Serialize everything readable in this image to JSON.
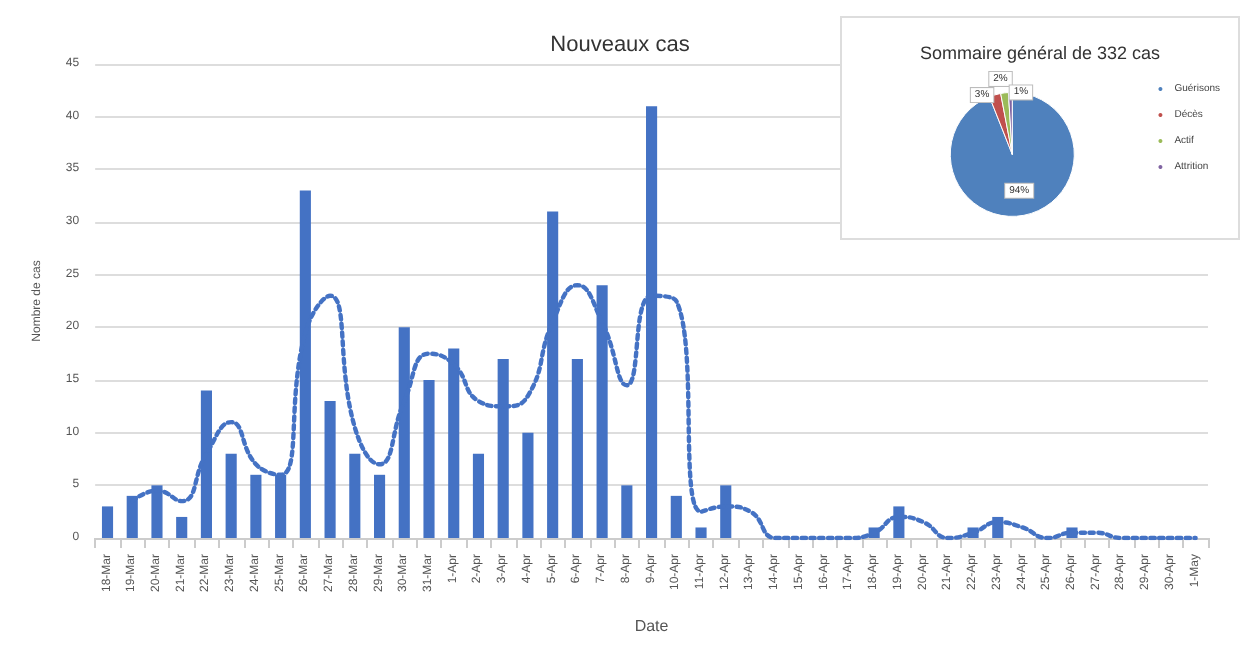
{
  "chart_data": [
    {
      "type": "bar",
      "title": "Nouveaux cas",
      "xlabel": "Date",
      "ylabel": "Nombre de cas",
      "categories": [
        "18-Mar",
        "19-Mar",
        "20-Mar",
        "21-Mar",
        "22-Mar",
        "23-Mar",
        "24-Mar",
        "25-Mar",
        "26-Mar",
        "27-Mar",
        "28-Mar",
        "29-Mar",
        "30-Mar",
        "31-Mar",
        "1-Apr",
        "2-Apr",
        "3-Apr",
        "4-Apr",
        "5-Apr",
        "6-Apr",
        "7-Apr",
        "8-Apr",
        "9-Apr",
        "10-Apr",
        "11-Apr",
        "12-Apr",
        "13-Apr",
        "14-Apr",
        "15-Apr",
        "16-Apr",
        "17-Apr",
        "18-Apr",
        "19-Apr",
        "20-Apr",
        "21-Apr",
        "22-Apr",
        "23-Apr",
        "24-Apr",
        "25-Apr",
        "26-Apr",
        "27-Apr",
        "28-Apr",
        "29-Apr",
        "30-Apr",
        "1-May"
      ],
      "series": [
        {
          "type": "bar",
          "color": "#4472c4",
          "values": [
            3,
            4,
            5,
            2,
            14,
            8,
            6,
            6,
            33,
            13,
            8,
            6,
            20,
            15,
            18,
            8,
            17,
            10,
            31,
            17,
            24,
            5,
            41,
            4,
            1,
            5,
            0,
            0,
            0,
            0,
            0,
            1,
            3,
            0,
            0,
            1,
            2,
            0,
            0,
            1,
            0,
            0,
            0,
            0,
            0
          ]
        },
        {
          "type": "line",
          "color": "#4472c4",
          "line_style": "dotted",
          "marker": "none",
          "values": [
            null,
            3.5,
            4.5,
            3.5,
            8,
            11,
            7,
            6,
            19.5,
            23,
            10.5,
            7,
            13,
            17.5,
            16.5,
            13,
            12.5,
            13.5,
            20.5,
            24,
            20.5,
            14.5,
            23,
            22.5,
            2.5,
            3,
            2.5,
            0,
            0,
            0,
            0,
            0.5,
            2,
            1.5,
            0,
            0.5,
            1.5,
            1,
            0,
            0.5,
            0.5,
            0,
            0,
            0,
            0
          ]
        }
      ],
      "ylim": [
        0,
        45
      ],
      "yticks": [
        0,
        5,
        10,
        15,
        20,
        25,
        30,
        35,
        40,
        45
      ],
      "grid": "y",
      "legend": false
    },
    {
      "type": "pie",
      "title": "Sommaire général de 332 cas",
      "categories": [
        "Guérisons",
        "Décès",
        "Actif",
        "Attrition"
      ],
      "values": [
        94,
        3,
        2,
        1
      ],
      "colors": [
        "#4f81bd",
        "#c0504d",
        "#9bbb59",
        "#8064a2"
      ],
      "value_labels": [
        "94%",
        "3%",
        "2%",
        "1%"
      ],
      "legend": "right"
    }
  ]
}
